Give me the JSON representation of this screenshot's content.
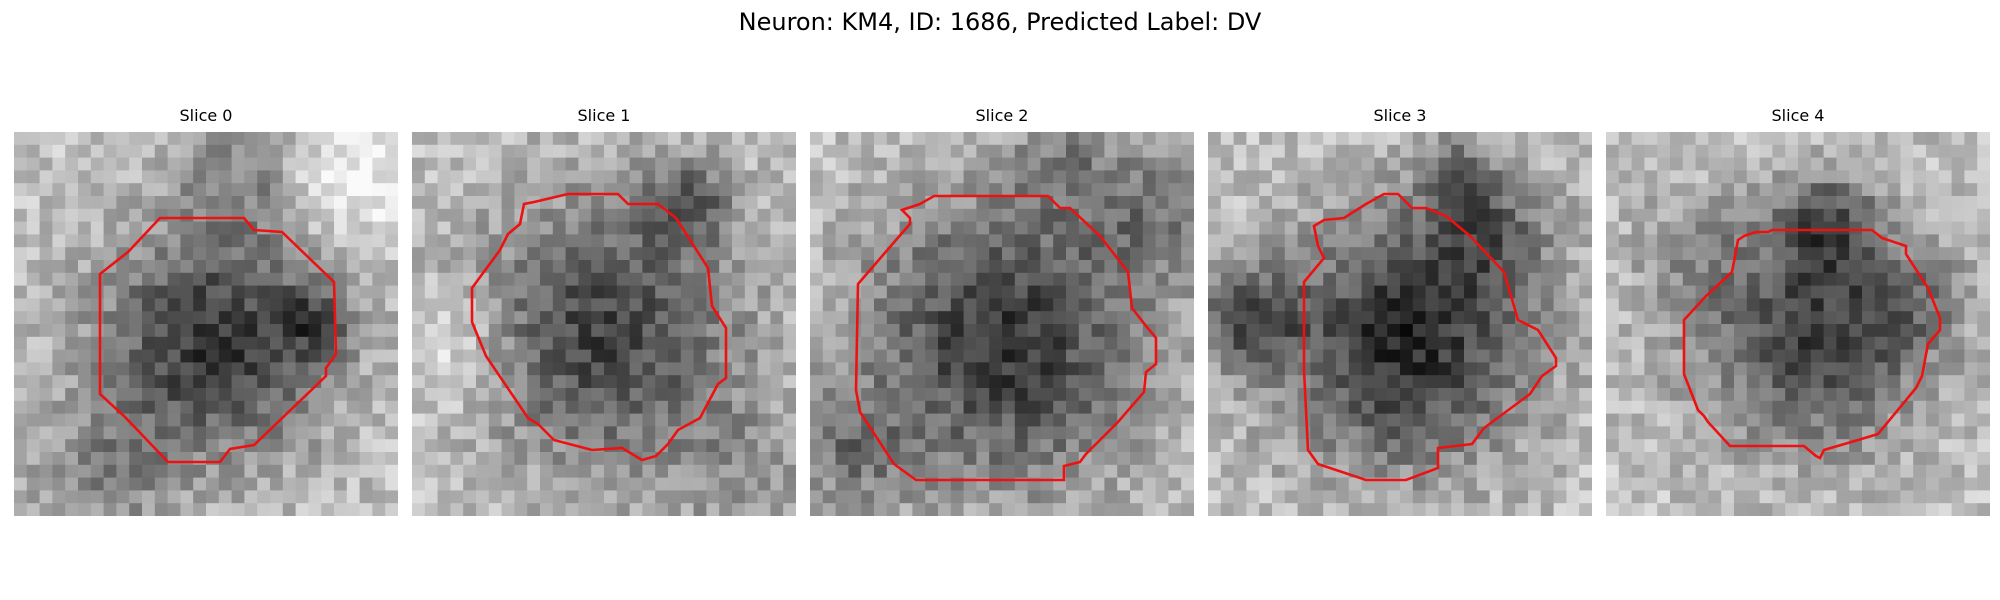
{
  "figure": {
    "title": "Neuron: KM4, ID: 1686, Predicted Label: DV"
  },
  "colors": {
    "contour": "#ee1111",
    "background": "#ffffff"
  },
  "panels": [
    {
      "title": "Slice 0"
    },
    {
      "title": "Slice 1"
    },
    {
      "title": "Slice 2"
    },
    {
      "title": "Slice 3"
    },
    {
      "title": "Slice 4"
    }
  ]
}
